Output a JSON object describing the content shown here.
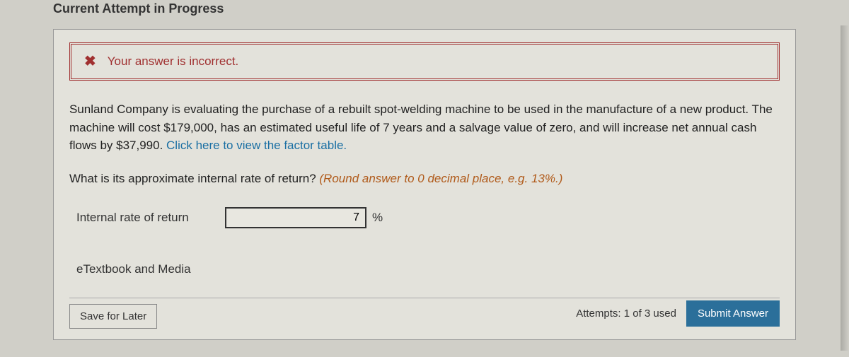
{
  "heading": "Current Attempt in Progress",
  "alert": {
    "icon_glyph": "✖",
    "message": "Your answer is incorrect."
  },
  "problem": {
    "body_pre": "Sunland Company is evaluating the purchase of a rebuilt spot-welding machine to be used in the manufacture of a new product. The machine will cost $179,000, has an estimated useful life of 7 years and a salvage value of zero, and will increase net annual cash flows by $37,990. ",
    "factor_link_text": "Click here to view the factor table."
  },
  "question": {
    "prompt": "What is its approximate internal rate of return? ",
    "hint": "(Round answer to 0 decimal place, e.g. 13%.)"
  },
  "answer": {
    "label": "Internal rate of return",
    "value": "7",
    "unit": "%"
  },
  "links": {
    "etextbook": "eTextbook and Media"
  },
  "actions": {
    "save_for_later": "Save for Later",
    "attempts_text": "Attempts: 1 of 3 used",
    "submit": "Submit Answer"
  },
  "colors": {
    "alert_border": "#a03030",
    "hint_color": "#b05a1a",
    "link_color": "#1a6fa3",
    "submit_bg": "#2b6f9a",
    "panel_bg": "#e3e2db",
    "page_bg": "#d0cfc8"
  }
}
